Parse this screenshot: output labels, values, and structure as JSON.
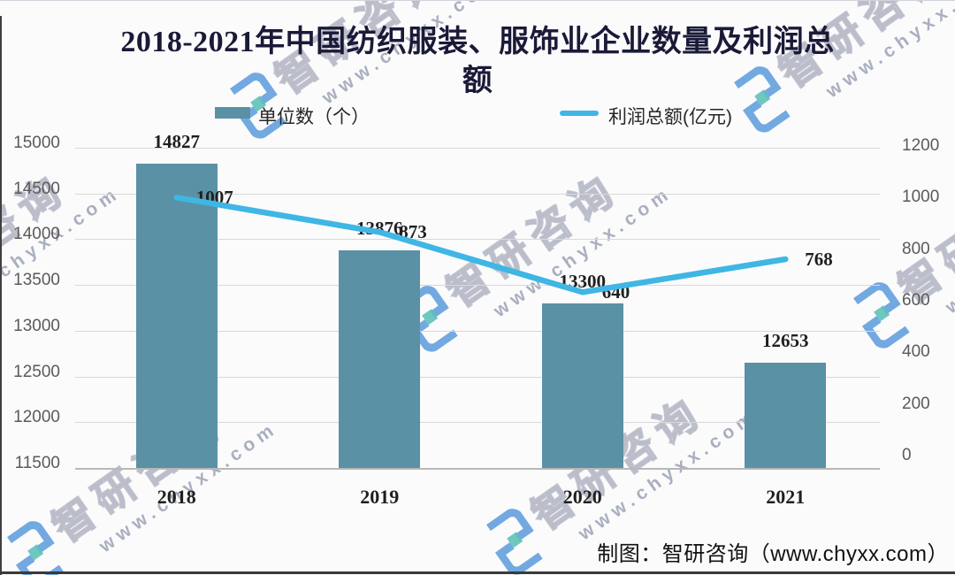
{
  "title": {
    "line1": "2018-2021年中国纺织服装、服饰业企业数量及利润总",
    "line2": "额"
  },
  "legend": {
    "bar_label": "单位数（个）",
    "line_label": "利润总额(亿元)"
  },
  "chart_data": {
    "type": "bar+line combo",
    "categories": [
      "2018",
      "2019",
      "2020",
      "2021"
    ],
    "series": [
      {
        "name": "单位数（个）",
        "type": "bar",
        "axis": "left",
        "color": "#5a91a4",
        "values": [
          14827,
          13876,
          13300,
          12653
        ]
      },
      {
        "name": "利润总额(亿元)",
        "type": "line",
        "axis": "right",
        "color": "#3fb6e4",
        "values": [
          1007,
          873,
          640,
          768
        ]
      }
    ],
    "left_axis": {
      "ticks": [
        15000,
        14500,
        14000,
        13500,
        13000,
        12500,
        12000,
        11500
      ],
      "min": 11500,
      "max": 15000
    },
    "right_axis": {
      "ticks": [
        1200,
        1000,
        800,
        600,
        400,
        200,
        0
      ],
      "min": 0,
      "max": 1200
    },
    "grid": true,
    "legend_position": "top"
  },
  "watermark": {
    "cn": "智研咨询",
    "url": "www.chyxx.com"
  },
  "footer": {
    "credit": "制图：智研咨询（www.chyxx.com）"
  },
  "colors": {
    "bar": "#5a91a4",
    "line": "#3fb6e4"
  }
}
